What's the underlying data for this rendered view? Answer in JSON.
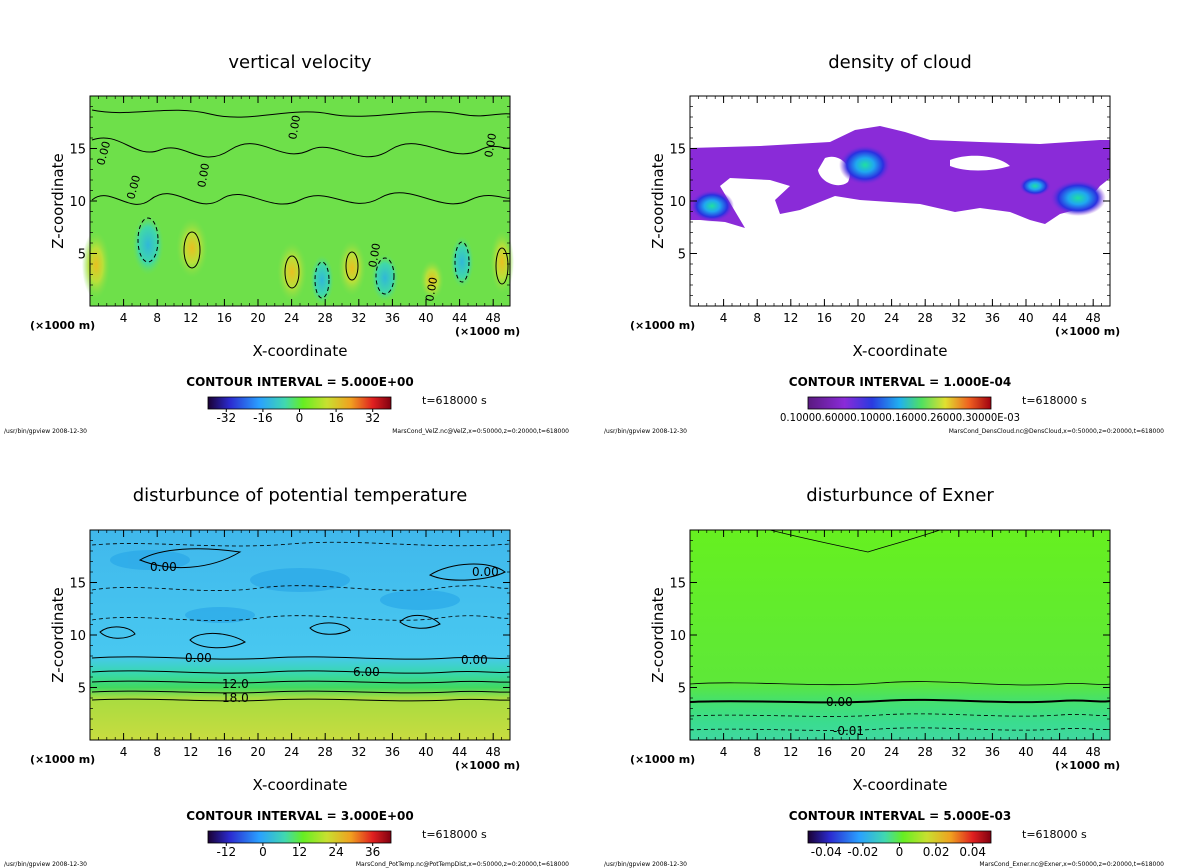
{
  "chart_data": [
    {
      "type": "heatmap",
      "title": "vertical velocity",
      "xlabel": "X-coordinate",
      "ylabel": "Z-coordinate",
      "x_unit": "(×1000 m)",
      "xlim": [
        0,
        50
      ],
      "ylim": [
        0,
        20
      ],
      "x_ticks": [
        4,
        8,
        12,
        16,
        20,
        24,
        28,
        32,
        36,
        40,
        44,
        48
      ],
      "y_ticks": [
        5,
        10,
        15
      ],
      "contour_interval": "CONTOUR INTERVAL = 5.000E+00",
      "time": "t=618000 s",
      "colorbar": {
        "min": -40,
        "max": 40,
        "ticks": [
          "-32",
          "-16",
          "0",
          "16",
          "32"
        ]
      },
      "contour_labels": [
        "0.00",
        "0.00",
        "0.00",
        "0.00",
        "0.00",
        "0.00",
        "0.00"
      ],
      "footer_left": "/usr/bin/gpview  2008-12-30",
      "footer_right": "MarsCond_VelZ.nc@VelZ,x=0:50000,z=0:20000,t=618000"
    },
    {
      "type": "heatmap",
      "title": "density of cloud",
      "xlabel": "X-coordinate",
      "ylabel": "Z-coordinate",
      "x_unit": "(×1000 m)",
      "xlim": [
        0,
        50
      ],
      "ylim": [
        0,
        20
      ],
      "x_ticks": [
        4,
        8,
        12,
        16,
        20,
        24,
        28,
        32,
        36,
        40,
        44,
        48
      ],
      "y_ticks": [
        5,
        10,
        15
      ],
      "contour_interval": "CONTOUR INTERVAL = 1.000E-04",
      "time": "t=618000 s",
      "colorbar": {
        "min": 0,
        "max": 0.001,
        "ticks": [
          "0.10000.60000.10000.16000.26000.30000E-03"
        ]
      },
      "footer_left": "/usr/bin/gpview  2008-12-30",
      "footer_right": "MarsCond_DensCloud.nc@DensCloud,x=0:50000,z=0:20000,t=618000"
    },
    {
      "type": "heatmap",
      "title": "disturbunce of potential temperature",
      "xlabel": "X-coordinate",
      "ylabel": "Z-coordinate",
      "x_unit": "(×1000 m)",
      "xlim": [
        0,
        50
      ],
      "ylim": [
        0,
        20
      ],
      "x_ticks": [
        4,
        8,
        12,
        16,
        20,
        24,
        28,
        32,
        36,
        40,
        44,
        48
      ],
      "y_ticks": [
        5,
        10,
        15
      ],
      "contour_interval": "CONTOUR INTERVAL = 3.000E+00",
      "time": "t=618000 s",
      "colorbar": {
        "min": -18,
        "max": 42,
        "ticks": [
          "-12",
          "0",
          "12",
          "24",
          "36"
        ]
      },
      "contour_labels": [
        "0.00",
        "0.00",
        "0.00",
        "0.00",
        "6.00",
        "12.0",
        "18.0"
      ],
      "footer_left": "/usr/bin/gpview  2008-12-30",
      "footer_right": "MarsCond_PotTemp.nc@PotTempDist,x=0:50000,z=0:20000,t=618000"
    },
    {
      "type": "heatmap",
      "title": "disturbunce of Exner",
      "xlabel": "X-coordinate",
      "ylabel": "Z-coordinate",
      "x_unit": "(×1000 m)",
      "xlim": [
        0,
        50
      ],
      "ylim": [
        0,
        20
      ],
      "x_ticks": [
        4,
        8,
        12,
        16,
        20,
        24,
        28,
        32,
        36,
        40,
        44,
        48
      ],
      "y_ticks": [
        5,
        10,
        15
      ],
      "contour_interval": "CONTOUR INTERVAL = 5.000E-03",
      "time": "t=618000 s",
      "colorbar": {
        "min": -0.05,
        "max": 0.05,
        "ticks": [
          "-0.04",
          "-0.02",
          "0",
          "0.02",
          "0.04"
        ]
      },
      "contour_labels": [
        "0.00",
        "-0.01"
      ],
      "footer_left": "/usr/bin/gpview  2008-12-30",
      "footer_right": "MarsCond_Exner.nc@Exner,x=0:50000,z=0:20000,t=618000"
    }
  ]
}
